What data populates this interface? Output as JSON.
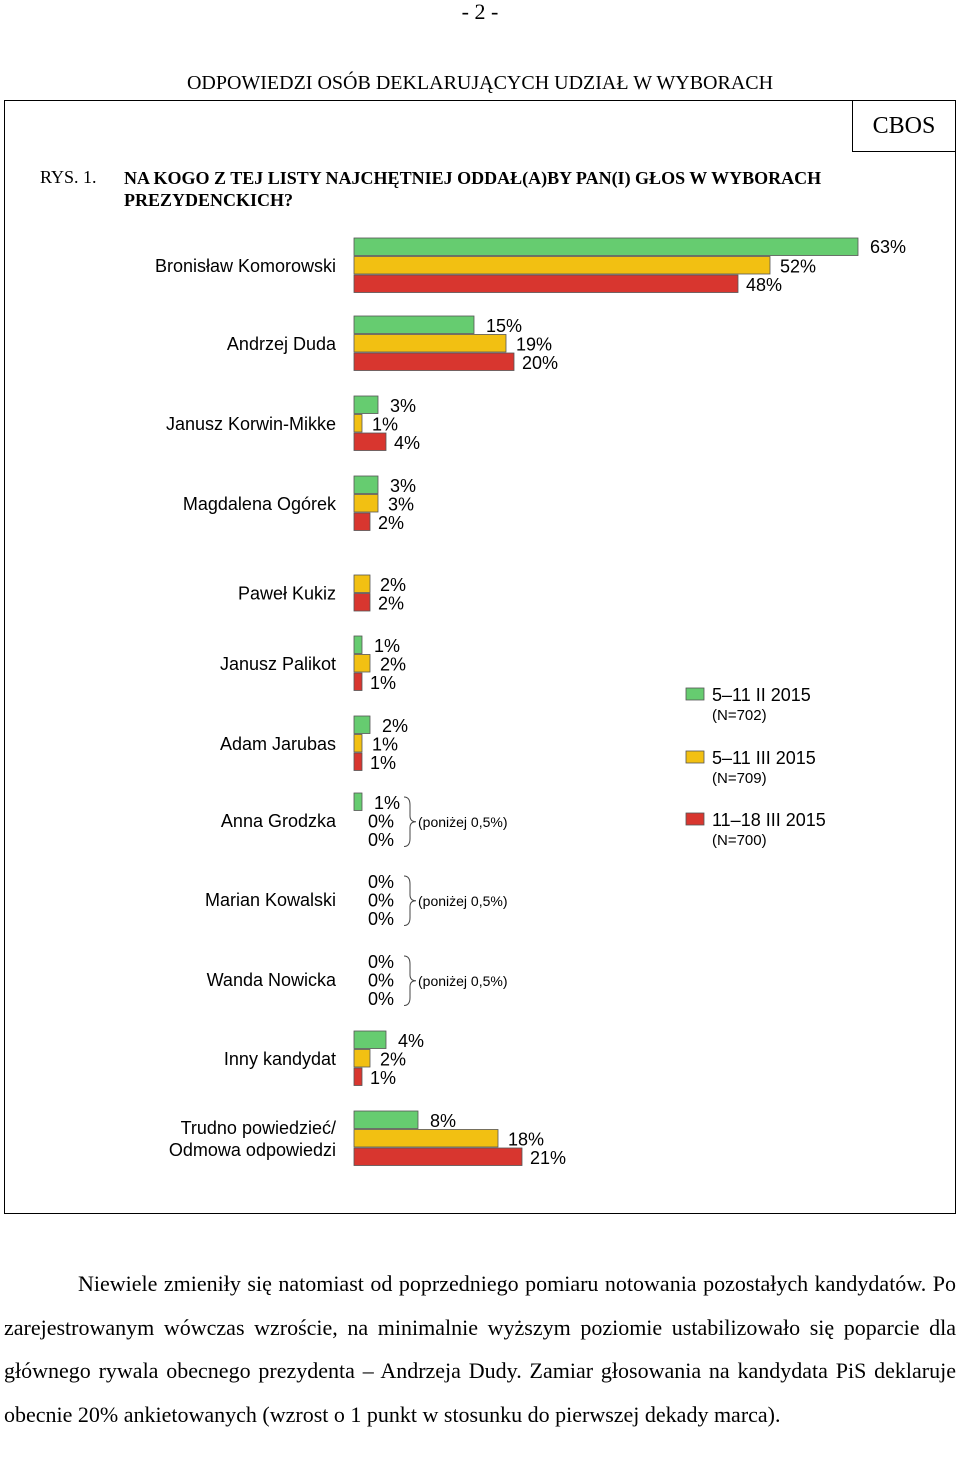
{
  "page": {
    "number": "- 2 -"
  },
  "header": {
    "section_title": "ODPOWIEDZI OSÓB DEKLARUJĄCYCH UDZIAŁ W WYBORACH",
    "brand": "CBOS"
  },
  "figure": {
    "label": "RYS. 1.",
    "title": "NA KOGO Z TEJ LISTY NAJCHĘTNIEJ ODDAŁ(A)BY PAN(I) GŁOS W WYBORACH PREZYDENCKICH?"
  },
  "chart_data": {
    "type": "bar",
    "orientation": "horizontal",
    "value_unit": "%",
    "xlim": [
      0,
      63
    ],
    "grid": false,
    "legend_position": "right",
    "series": [
      {
        "name": "5–11 II 2015",
        "sample": "(N=702)",
        "color": "#66cc70"
      },
      {
        "name": "5–11 III 2015",
        "sample": "(N=709)",
        "color": "#f2c012"
      },
      {
        "name": "11–18 III 2015",
        "sample": "(N=700)",
        "color": "#d8362f"
      }
    ],
    "categories": [
      {
        "label": [
          "Bronisław Komorowski"
        ],
        "values": [
          63,
          52,
          48
        ]
      },
      {
        "label": [
          "Andrzej Duda"
        ],
        "values": [
          15,
          19,
          20
        ]
      },
      {
        "label": [
          "Janusz Korwin-Mikke"
        ],
        "values": [
          3,
          1,
          4
        ]
      },
      {
        "label": [
          "Magdalena Ogórek"
        ],
        "values": [
          3,
          3,
          2
        ]
      },
      {
        "label": [
          "Paweł Kukiz"
        ],
        "values": [
          null,
          2,
          2
        ]
      },
      {
        "label": [
          "Janusz Palikot"
        ],
        "values": [
          1,
          2,
          1
        ]
      },
      {
        "label": [
          "Adam Jarubas"
        ],
        "values": [
          2,
          1,
          1
        ]
      },
      {
        "label": [
          "Anna Grodzka"
        ],
        "values": [
          1,
          0,
          0
        ],
        "note": "(poniżej 0,5%)"
      },
      {
        "label": [
          "Marian Kowalski"
        ],
        "values": [
          0,
          0,
          0
        ],
        "note": "(poniżej 0,5%)"
      },
      {
        "label": [
          "Wanda Nowicka"
        ],
        "values": [
          0,
          0,
          0
        ],
        "note": "(poniżej 0,5%)"
      },
      {
        "label": [
          "Inny kandydat"
        ],
        "values": [
          4,
          2,
          1
        ]
      },
      {
        "label": [
          "Trudno powiedzieć/",
          "Odmowa odpowiedzi"
        ],
        "values": [
          8,
          18,
          21
        ]
      }
    ]
  },
  "body_text": "Niewiele zmieniły się natomiast od poprzedniego pomiaru notowania pozostałych kandydatów. Po zarejestrowanym wówczas wzroście, na minimalnie wyższym poziomie ustabilizowało się poparcie dla głównego rywala obecnego prezydenta – Andrzeja Dudy. Zamiar głosowania na kandydata PiS deklaruje obecnie 20% ankietowanych (wzrost o 1 punkt w stosunku do pierwszej dekady marca)."
}
